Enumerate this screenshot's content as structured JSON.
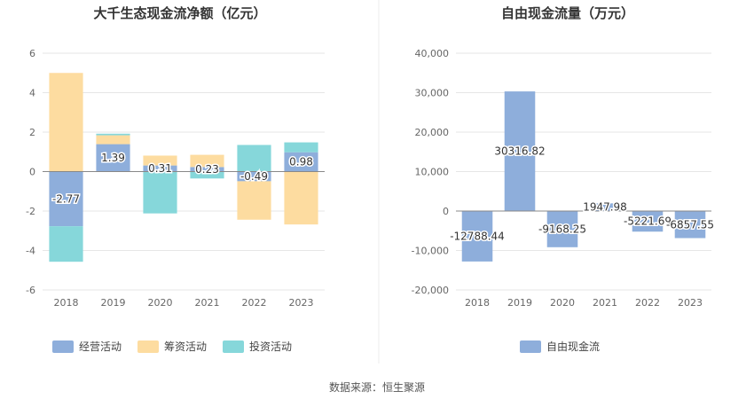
{
  "source_text": "数据来源：恒生聚源",
  "chart_data": [
    {
      "type": "bar",
      "stacked": true,
      "title": "大千生态现金流净额（亿元）",
      "categories": [
        "2018",
        "2019",
        "2020",
        "2021",
        "2022",
        "2023"
      ],
      "ylim": [
        -6,
        6
      ],
      "yticks": [
        "6",
        "4",
        "2",
        "0",
        "-2",
        "-4",
        "-6"
      ],
      "grid": true,
      "legend_position": "bottom",
      "series": [
        {
          "name": "经营活动",
          "color": "#8eaedb",
          "values": [
            -2.77,
            1.39,
            0.31,
            0.23,
            -0.49,
            0.98
          ],
          "labels": [
            "-2.77",
            "1.39",
            "0.31",
            "0.23",
            "-0.49",
            "0.98"
          ]
        },
        {
          "name": "筹资活动",
          "color": "#fddca0",
          "values": [
            5.0,
            0.45,
            0.5,
            0.62,
            -1.95,
            -2.68
          ]
        },
        {
          "name": "投资活动",
          "color": "#86d7da",
          "values": [
            -1.8,
            0.08,
            -2.12,
            -0.35,
            1.35,
            0.5
          ]
        }
      ]
    },
    {
      "type": "bar",
      "title": "自由现金流量（万元）",
      "categories": [
        "2018",
        "2019",
        "2020",
        "2021",
        "2022",
        "2023"
      ],
      "ylim": [
        -20000,
        40000
      ],
      "yticks": [
        "40,000",
        "30,000",
        "20,000",
        "10,000",
        "0",
        "-10,000",
        "-20,000"
      ],
      "grid": true,
      "legend_position": "bottom",
      "series": [
        {
          "name": "自由现金流",
          "color": "#8eaedb",
          "values": [
            -12788.44,
            30316.82,
            -9168.25,
            1947.98,
            -5221.69,
            -6857.55
          ],
          "labels": [
            "-12788.44",
            "30316.82",
            "-9168.25",
            "1947.98",
            "-5221.69",
            "-6857.55"
          ]
        }
      ]
    }
  ]
}
